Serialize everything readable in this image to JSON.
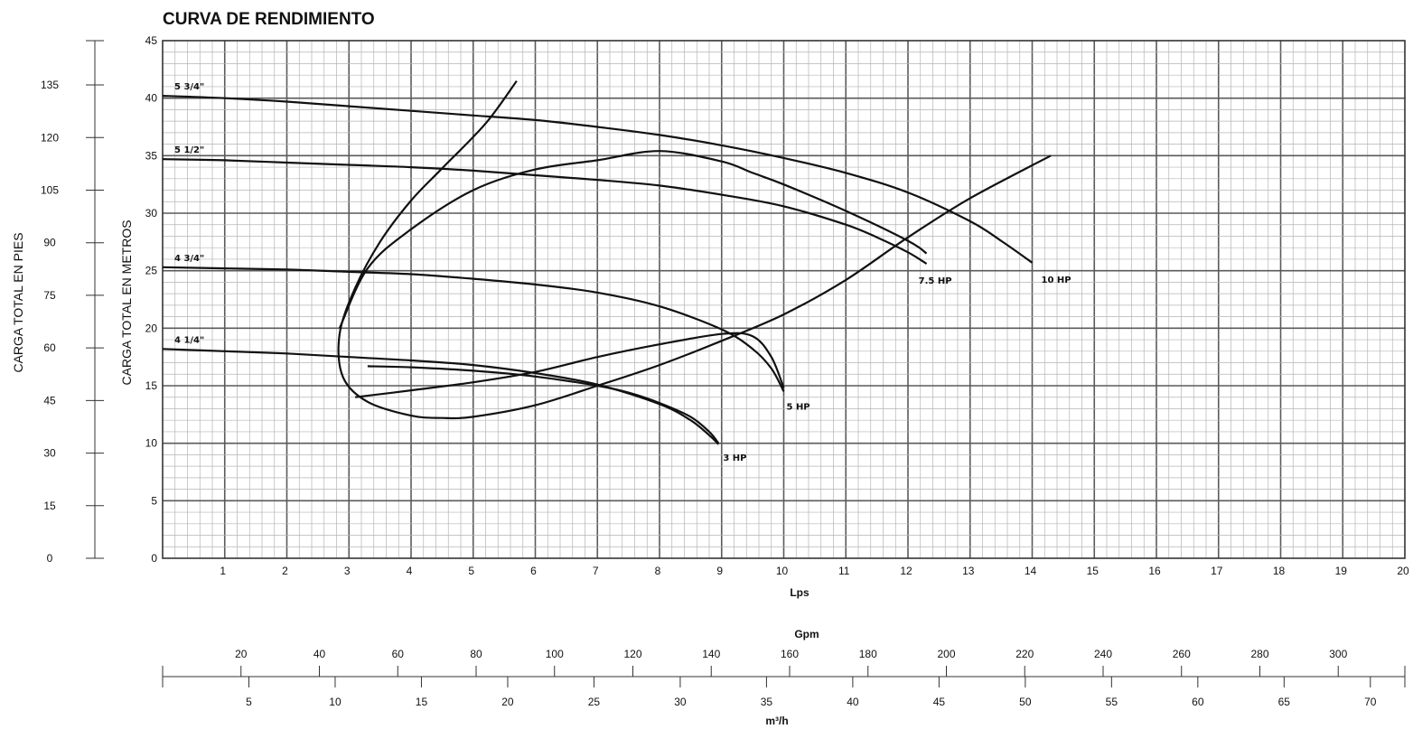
{
  "chart_data": {
    "type": "line",
    "title": "CURVA DE RENDIMIENTO",
    "xlabel": "Lps",
    "ylabel": "CARGA TOTAL EN METROS",
    "ylabel_secondary": "CARGA TOTAL EN PIES",
    "xlim": [
      0,
      20
    ],
    "ylim": [
      0,
      45
    ],
    "grid": true,
    "x_ticks": [
      1,
      2,
      3,
      4,
      5,
      6,
      7,
      8,
      9,
      10,
      11,
      12,
      13,
      14,
      15,
      16,
      17,
      18,
      19,
      20
    ],
    "y_ticks": [
      0,
      5,
      10,
      15,
      20,
      25,
      30,
      35,
      40,
      45
    ],
    "feet_axis": {
      "label": "CARGA TOTAL EN PIES",
      "ticks": [
        0,
        15,
        30,
        45,
        60,
        75,
        90,
        105,
        120,
        135
      ]
    },
    "gpm_axis": {
      "label": "Gpm",
      "ticks": [
        20,
        40,
        60,
        80,
        100,
        120,
        140,
        160,
        180,
        200,
        220,
        240,
        260,
        280,
        300
      ]
    },
    "m3h_axis": {
      "label": "m³/h",
      "ticks": [
        5,
        10,
        15,
        20,
        25,
        30,
        35,
        40,
        45,
        50,
        55,
        60,
        65,
        70
      ]
    },
    "series": [
      {
        "name": "5 3/4\"",
        "x": [
          0,
          1,
          2,
          3,
          4,
          5,
          6,
          7,
          8,
          9,
          10,
          11,
          12,
          13,
          13.5,
          14
        ],
        "y": [
          40.2,
          40,
          39.7,
          39.3,
          38.9,
          38.5,
          38.1,
          37.5,
          36.8,
          35.9,
          34.8,
          33.5,
          31.8,
          29.3,
          27.6,
          25.7
        ]
      },
      {
        "name": "5 1/2\"",
        "x": [
          0,
          1,
          2,
          3,
          4,
          5,
          6,
          7,
          8,
          9,
          10,
          11,
          11.5,
          12,
          12.3
        ],
        "y": [
          34.7,
          34.6,
          34.4,
          34.2,
          34,
          33.7,
          33.3,
          32.9,
          32.4,
          31.6,
          30.6,
          29,
          27.9,
          26.6,
          25.6
        ]
      },
      {
        "name": "4 3/4\"",
        "x": [
          0,
          1,
          2,
          3,
          4,
          5,
          6,
          7,
          8,
          9,
          9.5,
          9.8,
          10
        ],
        "y": [
          25.3,
          25.2,
          25.1,
          24.9,
          24.7,
          24.3,
          23.8,
          23.1,
          21.9,
          19.9,
          18.2,
          16.5,
          14.5
        ]
      },
      {
        "name": "4 1/4\"",
        "x": [
          0,
          1,
          2,
          3,
          4,
          5,
          6,
          7,
          8,
          8.5,
          8.8,
          8.95
        ],
        "y": [
          18.2,
          18,
          17.8,
          17.5,
          17.2,
          16.8,
          16.1,
          15.1,
          13.4,
          12,
          10.7,
          9.9
        ]
      }
    ],
    "hp_lines": [
      {
        "name": "3 HP",
        "x": [
          3.3,
          4,
          5,
          6,
          7,
          7.5,
          8,
          8.5,
          8.8,
          8.95
        ],
        "y": [
          16.7,
          16.6,
          16.3,
          15.8,
          15.0,
          14.4,
          13.5,
          12.3,
          11.0,
          10.0
        ]
      },
      {
        "name": "5 HP",
        "x": [
          3.1,
          4,
          5,
          6,
          7,
          8,
          9,
          9.5,
          9.8,
          10
        ],
        "y": [
          14,
          14.6,
          15.3,
          16.2,
          17.5,
          18.6,
          19.5,
          19.3,
          17.5,
          14.8
        ]
      },
      {
        "name": "7.5 HP",
        "x": [
          2.85,
          3.3,
          4,
          5,
          6,
          7,
          8,
          9,
          9.5,
          10,
          11,
          12,
          12.3
        ],
        "y": [
          20,
          25.2,
          28.6,
          32,
          33.8,
          34.6,
          35.4,
          34.5,
          33.5,
          32.5,
          30.2,
          27.6,
          26.5
        ]
      },
      {
        "name": "10 HP",
        "x": [
          5.7,
          5.2,
          4.5,
          4,
          3.5,
          3.1,
          2.85,
          2.9,
          3.3,
          4,
          4.5,
          5,
          6,
          7,
          8,
          9,
          10,
          11,
          12,
          13,
          14.3
        ],
        "y": [
          41.5,
          37.8,
          33.9,
          31.1,
          27.5,
          23.5,
          19.5,
          15.8,
          13.6,
          12.4,
          12.2,
          12.3,
          13.3,
          15.0,
          16.8,
          18.9,
          21.2,
          24.2,
          27.9,
          31.3,
          35.0
        ]
      }
    ]
  }
}
